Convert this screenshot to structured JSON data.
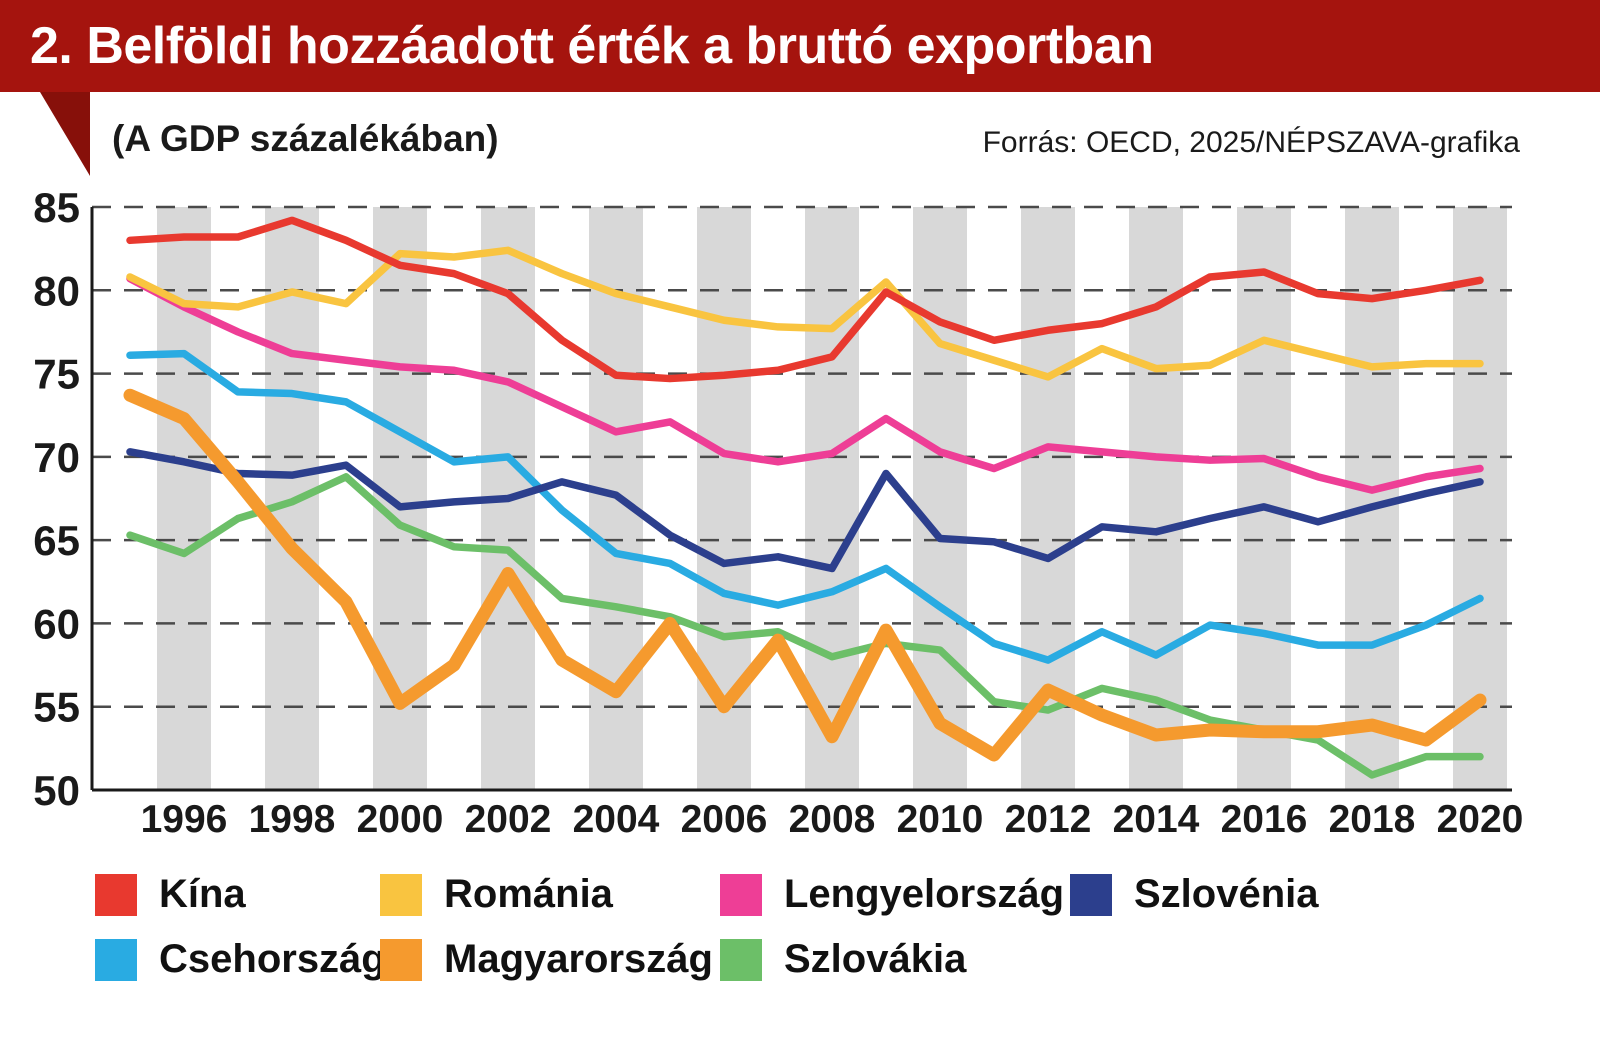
{
  "header": {
    "title": "2. Belföldi hozzáadott érték a bruttó exportban"
  },
  "subtitle": "(A GDP százalékában)",
  "source": "Forrás: OECD, 2025/NÉPSZAVA-grafika",
  "colors": {
    "header": "#a5140e",
    "ribbon": "#87100a",
    "band": "#d8d8d8",
    "grid": "#4a4a4a",
    "axis": "#1a1a1a",
    "text": "#1a1a1a"
  },
  "chart_data": {
    "type": "line",
    "title": "2. Belföldi hozzáadott érték a bruttó exportban",
    "subtitle": "(A GDP százalékában)",
    "source": "Forrás: OECD, 2025/NÉPSZAVA-grafika",
    "x": [
      1995,
      1996,
      1997,
      1998,
      1999,
      2000,
      2001,
      2002,
      2003,
      2004,
      2005,
      2006,
      2007,
      2008,
      2009,
      2010,
      2011,
      2012,
      2013,
      2014,
      2015,
      2016,
      2017,
      2018,
      2019,
      2020
    ],
    "x_tick_labels": [
      1996,
      1998,
      2000,
      2002,
      2004,
      2006,
      2008,
      2010,
      2012,
      2014,
      2016,
      2018,
      2020
    ],
    "ylim": [
      50,
      85
    ],
    "y_tick_step": 5,
    "grid": "dashed horizontal",
    "legend_position": "bottom",
    "series": [
      {
        "name": "Szlovákia",
        "color": "#6cbf68",
        "width": 7.5,
        "values": [
          65.3,
          64.2,
          66.3,
          67.3,
          68.8,
          65.9,
          64.6,
          64.4,
          61.5,
          61.0,
          60.4,
          59.2,
          59.5,
          58.0,
          58.8,
          58.4,
          55.3,
          54.8,
          56.1,
          55.4,
          54.2,
          53.6,
          53.0,
          50.9,
          52.0,
          52.0
        ]
      },
      {
        "name": "Csehország",
        "color": "#29abe2",
        "width": 7.5,
        "values": [
          76.1,
          76.2,
          73.9,
          73.8,
          73.3,
          71.5,
          69.7,
          70.0,
          66.8,
          64.2,
          63.6,
          61.8,
          61.1,
          61.9,
          63.3,
          61.0,
          58.8,
          57.8,
          59.5,
          58.1,
          59.9,
          59.4,
          58.7,
          58.7,
          59.9,
          61.5
        ]
      },
      {
        "name": "Szlovénia",
        "color": "#2c3f8d",
        "width": 7.5,
        "values": [
          70.3,
          69.7,
          69.0,
          68.9,
          69.5,
          67.0,
          67.3,
          67.5,
          68.5,
          67.7,
          65.3,
          63.6,
          64.0,
          63.3,
          69.0,
          65.1,
          64.9,
          63.9,
          65.8,
          65.5,
          66.3,
          67.0,
          66.1,
          67.0,
          67.8,
          68.5
        ]
      },
      {
        "name": "Lengyelország",
        "color": "#ee3e96",
        "width": 7.5,
        "values": [
          80.7,
          79.0,
          77.5,
          76.2,
          75.8,
          75.4,
          75.2,
          74.5,
          73.0,
          71.5,
          72.1,
          70.2,
          69.7,
          70.2,
          72.3,
          70.3,
          69.3,
          70.6,
          70.3,
          70.0,
          69.8,
          69.9,
          68.8,
          68.0,
          68.8,
          69.3
        ]
      },
      {
        "name": "Románia",
        "color": "#f9c440",
        "width": 7.5,
        "values": [
          80.8,
          79.2,
          79.0,
          79.9,
          79.2,
          82.2,
          82.0,
          82.4,
          81.0,
          79.8,
          79.0,
          78.2,
          77.8,
          77.7,
          80.5,
          76.8,
          75.8,
          74.8,
          76.5,
          75.3,
          75.5,
          77.0,
          76.2,
          75.4,
          75.6,
          75.6
        ]
      },
      {
        "name": "Kína",
        "color": "#e8392f",
        "width": 7.5,
        "values": [
          83.0,
          83.2,
          83.2,
          84.2,
          83.0,
          81.5,
          81.0,
          79.8,
          77.0,
          74.9,
          74.7,
          74.9,
          75.2,
          76.0,
          79.9,
          78.1,
          77.0,
          77.6,
          78.0,
          79.0,
          80.8,
          81.1,
          79.8,
          79.5,
          80.0,
          80.6
        ]
      },
      {
        "name": "Magyarország",
        "color": "#f59a2e",
        "width": 13,
        "values": [
          73.7,
          72.3,
          68.5,
          64.5,
          61.3,
          55.2,
          57.5,
          63.0,
          57.8,
          55.9,
          60.0,
          55.0,
          59.0,
          53.2,
          59.6,
          54.0,
          52.1,
          56.0,
          54.5,
          53.3,
          53.6,
          53.5,
          53.5,
          53.9,
          53.0,
          55.4
        ]
      }
    ],
    "legend_rows": [
      [
        "Kína",
        "Románia",
        "Lengyelország",
        "Szlovénia"
      ],
      [
        "Csehország",
        "Magyarország",
        "Szlovákia"
      ]
    ]
  }
}
